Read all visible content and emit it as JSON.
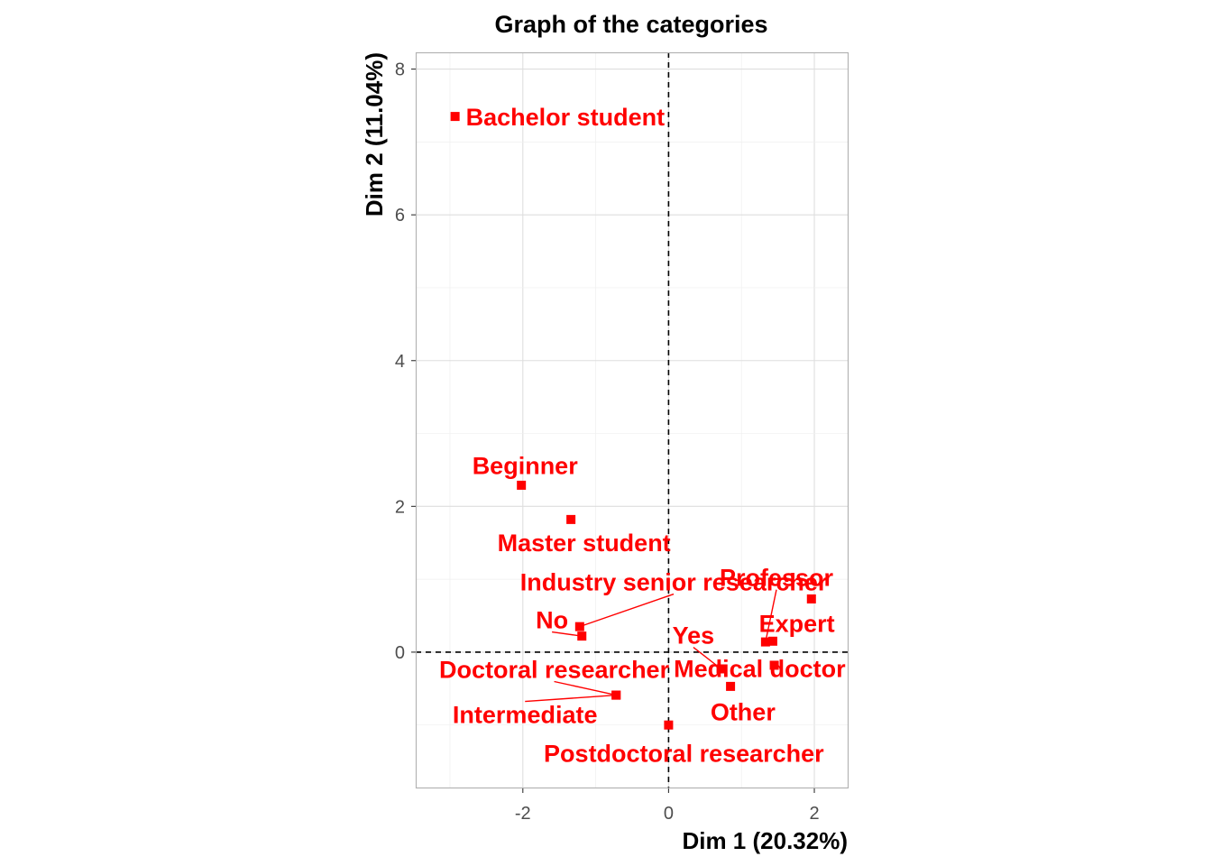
{
  "chart_data": {
    "type": "scatter",
    "title": "Graph of the categories",
    "xlabel": "Dim 1 (20.32%)",
    "ylabel": "Dim 2 (11.04%)",
    "xlim": [
      -3.47,
      2.47
    ],
    "ylim": [
      -1.87,
      8.23
    ],
    "xticks": [
      -2,
      0,
      2
    ],
    "yticks": [
      0,
      2,
      4,
      6,
      8
    ],
    "xtick_labels": [
      "-2",
      "0",
      "2"
    ],
    "ytick_labels": [
      "0",
      "2",
      "4",
      "6",
      "8"
    ],
    "grid": true,
    "reference_lines": {
      "x": 0,
      "y": 0,
      "style": "dashed"
    },
    "point_color": "#ff0000",
    "points": [
      {
        "label": "Bachelor student",
        "x": -2.93,
        "y": 7.35,
        "lx": -2.93,
        "ly": 7.35,
        "anchor": "start"
      },
      {
        "label": "Beginner",
        "x": -2.02,
        "y": 2.29,
        "lx": -1.97,
        "ly": 2.57,
        "anchor": "middle"
      },
      {
        "label": "Master student",
        "x": -1.34,
        "y": 1.82,
        "lx": -1.16,
        "ly": 1.51,
        "anchor": "middle"
      },
      {
        "label": "Industry senior researcher",
        "x": -1.22,
        "y": 0.35,
        "lx": 0.07,
        "ly": 0.97,
        "anchor": "middle"
      },
      {
        "label": "No",
        "x": -1.19,
        "y": 0.22,
        "lx": -1.6,
        "ly": 0.45,
        "anchor": "middle"
      },
      {
        "label": "Doctoral researcher",
        "x": -0.72,
        "y": -0.59,
        "lx": -1.57,
        "ly": -0.23,
        "anchor": "middle"
      },
      {
        "label": "Intermediate",
        "x": -0.72,
        "y": -0.59,
        "lx": -1.97,
        "ly": -0.85,
        "anchor": "middle"
      },
      {
        "label": "Postdoctoral researcher",
        "x": 0.0,
        "y": -1.0,
        "lx": 0.21,
        "ly": -1.38,
        "anchor": "middle"
      },
      {
        "label": "Other",
        "x": 0.85,
        "y": -0.47,
        "lx": 1.02,
        "ly": -0.81,
        "anchor": "middle"
      },
      {
        "label": "Yes",
        "x": 0.72,
        "y": -0.23,
        "lx": 0.34,
        "ly": 0.24,
        "anchor": "middle"
      },
      {
        "label": "Medical doctor",
        "x": 1.45,
        "y": -0.18,
        "lx": 1.25,
        "ly": -0.22,
        "anchor": "middle"
      },
      {
        "label": "Expert",
        "x": 1.43,
        "y": 0.15,
        "lx": 1.76,
        "ly": 0.4,
        "anchor": "middle"
      },
      {
        "label": "Professor",
        "x": 1.33,
        "y": 0.14,
        "lx": 1.48,
        "ly": 1.03,
        "anchor": "middle"
      },
      {
        "label": "",
        "x": 1.96,
        "y": 0.73,
        "lx": 1.96,
        "ly": 0.73,
        "anchor": "middle"
      }
    ]
  }
}
